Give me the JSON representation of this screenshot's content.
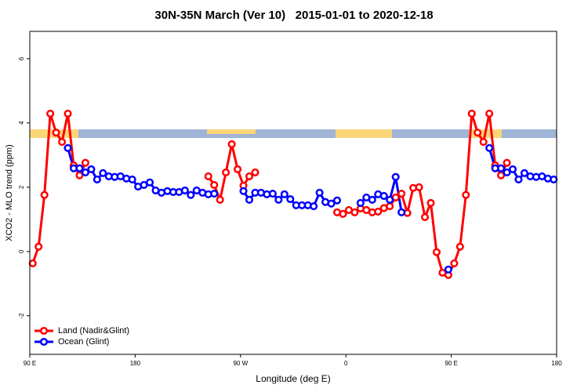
{
  "chart_data": {
    "type": "line",
    "title": "30N-35N March (Ver 10)   2015-01-01 to 2020-12-18",
    "xlabel": "Longitude (deg E)",
    "ylabel": "XCO2 - MLO trend (ppm)",
    "x": [
      92.5,
      97.5,
      102.5,
      107.5,
      112.5,
      117.5,
      122.5,
      127.5,
      132.5,
      137.5,
      142.5,
      147.5,
      152.5,
      157.5,
      162.5,
      167.5,
      172.5,
      177.5,
      182.5,
      187.5,
      192.5,
      197.5,
      202.5,
      207.5,
      212.5,
      217.5,
      222.5,
      227.5,
      232.5,
      237.5,
      242.5,
      247.5,
      252.5,
      257.5,
      262.5,
      267.5,
      272.5,
      277.5,
      282.5,
      287.5,
      292.5,
      297.5,
      302.5,
      307.5,
      312.5,
      317.5,
      322.5,
      327.5,
      332.5,
      337.5,
      342.5,
      347.5,
      352.5,
      357.5,
      362.5,
      367.5,
      372.5,
      377.5,
      382.5,
      387.5,
      392.5,
      397.5,
      402.5,
      407.5,
      412.5,
      417.5,
      422.5,
      427.5,
      432.5,
      437.5,
      442.5,
      447.5,
      452.5,
      457.5,
      462.5,
      467.5,
      472.5,
      477.5,
      482.5,
      487.5,
      492.5,
      497.5,
      502.5,
      507.5,
      512.5,
      517.5,
      522.5,
      527.5,
      532.5,
      537.5
    ],
    "series": [
      {
        "name": "Land (Nadir&Glint)",
        "color": "#ff0000",
        "values": [
          -0.37,
          0.15,
          1.76,
          4.29,
          3.7,
          3.41,
          4.29,
          2.68,
          2.37,
          2.76,
          null,
          null,
          null,
          null,
          null,
          null,
          null,
          null,
          null,
          null,
          null,
          null,
          null,
          null,
          null,
          null,
          null,
          null,
          null,
          null,
          2.34,
          2.07,
          1.61,
          2.46,
          3.34,
          2.56,
          2.05,
          2.34,
          2.46,
          null,
          null,
          null,
          null,
          null,
          null,
          null,
          null,
          null,
          null,
          null,
          null,
          null,
          1.22,
          1.17,
          1.29,
          1.22,
          1.34,
          1.29,
          1.22,
          1.24,
          1.35,
          1.41,
          1.68,
          1.8,
          1.2,
          1.98,
          2.0,
          1.07,
          1.51,
          -0.02,
          -0.66,
          -0.73,
          -0.37,
          0.15,
          1.76,
          4.29,
          3.7,
          3.41,
          4.29,
          2.68,
          2.37,
          2.76,
          null,
          null,
          null,
          null,
          null,
          null,
          null,
          null
        ]
      },
      {
        "name": "Ocean (Glint)",
        "color": "#0000ff",
        "values": [
          null,
          null,
          null,
          null,
          null,
          null,
          3.22,
          2.59,
          2.59,
          2.46,
          2.56,
          2.24,
          2.44,
          2.34,
          2.32,
          2.34,
          2.27,
          2.24,
          2.02,
          2.07,
          2.15,
          1.9,
          1.83,
          1.88,
          1.85,
          1.85,
          1.9,
          1.76,
          1.9,
          1.83,
          1.78,
          1.8,
          null,
          null,
          null,
          null,
          1.88,
          1.61,
          1.83,
          1.83,
          1.78,
          1.8,
          1.61,
          1.78,
          1.63,
          1.44,
          1.44,
          1.44,
          1.41,
          1.83,
          1.54,
          1.49,
          1.59,
          null,
          null,
          null,
          1.51,
          1.68,
          1.61,
          1.78,
          1.73,
          1.61,
          2.32,
          1.22,
          null,
          null,
          null,
          null,
          null,
          null,
          null,
          -0.56,
          null,
          null,
          null,
          null,
          null,
          null,
          3.22,
          2.59,
          2.59,
          2.46,
          2.56,
          2.24,
          2.44,
          2.34,
          2.32,
          2.34,
          2.27,
          2.24
        ]
      }
    ],
    "xlim": [
      90,
      540
    ],
    "xticks": [
      {
        "value": 90,
        "label": "90 E"
      },
      180,
      {
        "value": 270,
        "label": "90 W"
      },
      {
        "value": 360,
        "label": "0"
      },
      {
        "value": 450,
        "label": "90 E"
      },
      {
        "value": 540,
        "label": "180"
      }
    ],
    "ylim": [
      -3.2,
      6.85
    ],
    "yticks": [
      -2,
      0,
      2,
      4,
      6
    ],
    "legend": "bottom-left"
  }
}
